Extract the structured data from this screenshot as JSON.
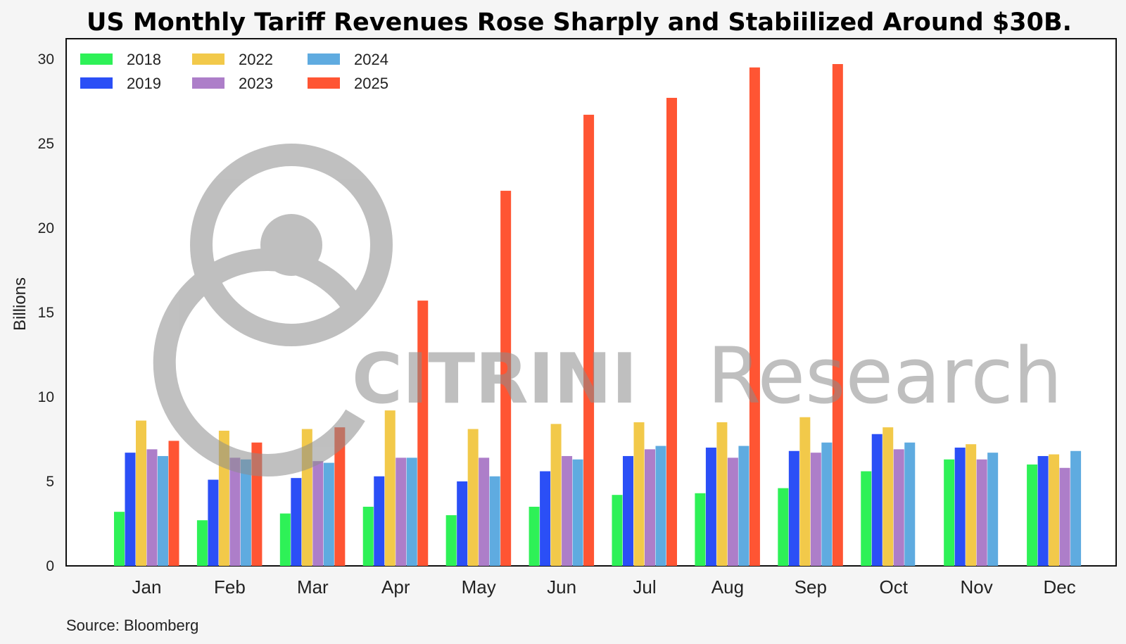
{
  "chart_data": {
    "type": "bar",
    "title": "US Monthly Tariff Revenues Rose Sharply and Stabiilized Around $30B.",
    "xlabel": "",
    "ylabel": "Billions",
    "ylim": [
      0,
      31.2
    ],
    "yticks": [
      0,
      5,
      10,
      15,
      20,
      25,
      30
    ],
    "grid": false,
    "legend_position": "top-left",
    "categories": [
      "Jan",
      "Feb",
      "Mar",
      "Apr",
      "May",
      "Jun",
      "Jul",
      "Aug",
      "Sep",
      "Oct",
      "Nov",
      "Dec"
    ],
    "series": [
      {
        "name": "2018",
        "color": "#2ef157",
        "values": [
          3.2,
          2.7,
          3.1,
          3.5,
          3.0,
          3.5,
          4.2,
          4.3,
          4.6,
          5.6,
          6.3,
          6.0
        ]
      },
      {
        "name": "2019",
        "color": "#2b4ff6",
        "values": [
          6.7,
          5.1,
          5.2,
          5.3,
          5.0,
          5.6,
          6.5,
          7.0,
          6.8,
          7.8,
          7.0,
          6.5
        ]
      },
      {
        "name": "2022",
        "color": "#f2c94a",
        "values": [
          8.6,
          8.0,
          8.1,
          9.2,
          8.1,
          8.4,
          8.5,
          8.5,
          8.8,
          8.2,
          7.2,
          6.6
        ]
      },
      {
        "name": "2023",
        "color": "#ad7ec9",
        "values": [
          6.9,
          6.4,
          6.2,
          6.4,
          6.4,
          6.5,
          6.9,
          6.4,
          6.7,
          6.9,
          6.3,
          5.8
        ]
      },
      {
        "name": "2024",
        "color": "#5fabe0",
        "values": [
          6.5,
          6.3,
          6.1,
          6.4,
          5.3,
          6.3,
          7.1,
          7.1,
          7.3,
          7.3,
          6.7,
          6.8
        ]
      },
      {
        "name": "2025",
        "color": "#ff5533",
        "values": [
          7.4,
          7.3,
          8.2,
          15.7,
          22.2,
          26.7,
          27.7,
          29.5,
          29.7,
          null,
          null,
          null
        ]
      }
    ],
    "source": "Source: Bloomberg"
  },
  "watermark": {
    "brand": "CITRINI",
    "suffix": "Research"
  },
  "colors": {
    "background": "#f5f5f5",
    "plot_background": "#ffffff",
    "axis": "#111111",
    "watermark": "#b0b0b0"
  }
}
